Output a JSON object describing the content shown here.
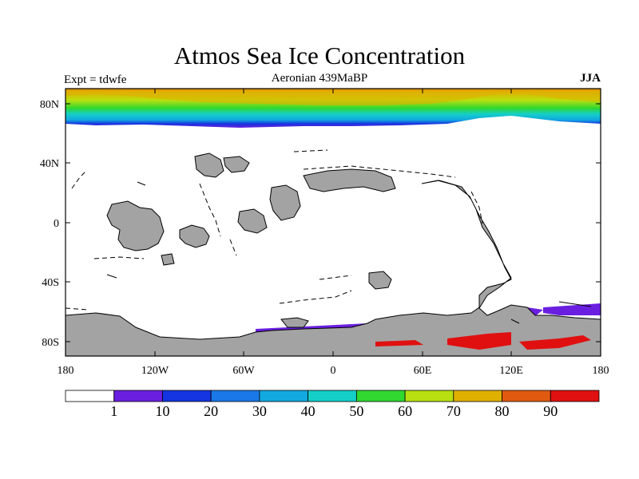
{
  "title": "Atmos Sea Ice Concentration",
  "left_label": "Expt = tdwfe",
  "center_label": "Aeronian 439MaBP",
  "right_label": "JJA",
  "map": {
    "lon_ticks": [
      "180",
      "120W",
      "60W",
      "0",
      "60E",
      "120E",
      "180"
    ],
    "lat_ticks": [
      "80N",
      "40N",
      "0",
      "40S",
      "80S"
    ]
  },
  "colorbar": {
    "labels": [
      "1",
      "10",
      "20",
      "30",
      "40",
      "50",
      "60",
      "70",
      "80",
      "90"
    ],
    "colors": [
      "#ffffff",
      "#6a1fe0",
      "#1535e0",
      "#1a78e8",
      "#12a8e0",
      "#14cfc8",
      "#30d830",
      "#b8e010",
      "#e0b000",
      "#e05a10",
      "#e01010"
    ]
  },
  "colors": {
    "land": "#a3a3a3",
    "ocean": "#ffffff"
  }
}
